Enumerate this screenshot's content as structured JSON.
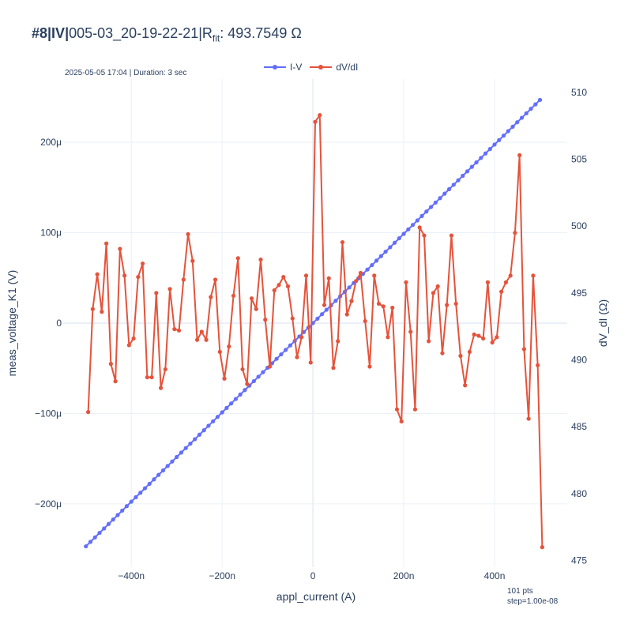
{
  "title": {
    "prefix": "#8|IV|",
    "main": "005-03_20-19-22-21|R",
    "sub": "fit",
    "suffix": ": 493.7549 Ω"
  },
  "meta": "2025-05-05 17:04 | Duration: 3 sec",
  "footnote": {
    "line1": "101 pts",
    "line2": "step=1.00e-08"
  },
  "colors": {
    "iv": "#636efa",
    "dvdi": "#e5533b",
    "grid": "#ebf0f8",
    "zero": "#ebf0f8",
    "text": "#2a3f5f"
  },
  "chart_data": {
    "type": "line",
    "xlabel": "appl_current (A)",
    "ylabel": "meas_voltage_K1 (V)",
    "y2label": "dV_dI (Ω)",
    "xlim": [
      -5.5e-07,
      5.6e-07
    ],
    "ylim": [
      -0.00027,
      0.00027
    ],
    "y2lim": [
      474.5,
      511
    ],
    "x_ticks": [
      -4e-07,
      -2e-07,
      0,
      2e-07,
      4e-07
    ],
    "x_tick_labels": [
      "−400n",
      "−200n",
      "0",
      "200n",
      "400n"
    ],
    "y_ticks": [
      -0.0002,
      -0.0001,
      0,
      0.0001,
      0.0002
    ],
    "y_tick_labels": [
      "−200μ",
      "−100μ",
      "0",
      "100μ",
      "200μ"
    ],
    "y2_ticks": [
      475,
      480,
      485,
      490,
      495,
      500,
      505,
      510
    ],
    "y2_tick_labels": [
      "475",
      "480",
      "485",
      "490",
      "495",
      "500",
      "505",
      "510"
    ],
    "legend": "top-center",
    "grid": true,
    "series": [
      {
        "name": "I-V",
        "axis": "y",
        "x_start": -5e-07,
        "x_step": 1e-08,
        "slope": 493.7549
      },
      {
        "name": "dV/dI",
        "axis": "y2",
        "x_start": -4.95e-07,
        "x_step": 1e-08,
        "values": [
          486.1,
          493.8,
          496.4,
          493.6,
          498.7,
          489.7,
          488.4,
          498.3,
          496.3,
          491.1,
          491.6,
          496.2,
          497.2,
          488.7,
          488.7,
          495.0,
          487.9,
          489.3,
          495.3,
          492.3,
          492.2,
          496.0,
          499.4,
          497.4,
          491.5,
          492.1,
          491.5,
          494.7,
          496.0,
          490.6,
          488.6,
          491.0,
          494.8,
          497.6,
          489.3,
          488.2,
          494.6,
          493.8,
          497.5,
          493.0,
          489.5,
          495.2,
          495.6,
          496.2,
          495.5,
          493.1,
          490.2,
          491.7,
          496.3,
          489.8,
          507.8,
          508.3,
          494.1,
          496.1,
          489.4,
          491.4,
          498.8,
          493.4,
          494.4,
          495.9,
          496.5,
          492.9,
          489.5,
          496.3,
          494.2,
          494.0,
          491.7,
          493.9,
          486.3,
          485.4,
          495.8,
          492.1,
          486.3,
          499.9,
          499.3,
          491.4,
          495.0,
          495.5,
          490.5,
          494.1,
          499.3,
          494.2,
          490.3,
          488.1,
          490.6,
          491.9,
          491.8,
          491.6,
          495.8,
          491.3,
          491.7,
          495.1,
          495.8,
          496.3,
          499.5,
          505.3,
          490.8,
          485.6,
          496.3,
          489.6,
          476.0
        ]
      }
    ]
  }
}
